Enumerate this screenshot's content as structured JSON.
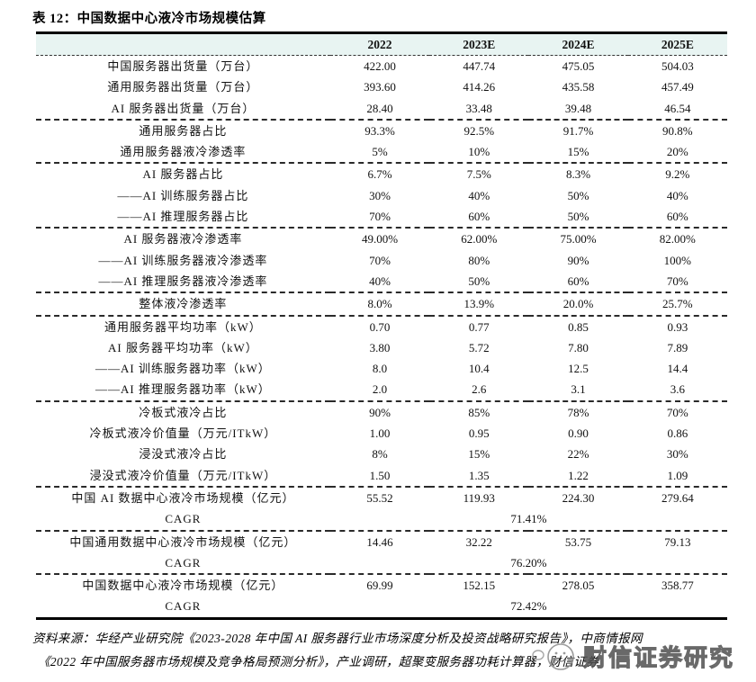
{
  "title": "表 12：中国数据中心液冷市场规模估算",
  "table": {
    "header": [
      "",
      "2022",
      "2023E",
      "2024E",
      "2025E"
    ],
    "rows": [
      {
        "label": "中国服务器出货量（万台）",
        "values": [
          "422.00",
          "447.74",
          "475.05",
          "504.03"
        ]
      },
      {
        "label": "通用服务器出货量（万台）",
        "values": [
          "393.60",
          "414.26",
          "435.58",
          "457.49"
        ]
      },
      {
        "label": "AI 服务器出货量（万台）",
        "values": [
          "28.40",
          "33.48",
          "39.48",
          "46.54"
        ],
        "section_end": true
      },
      {
        "label": "通用服务器占比",
        "values": [
          "93.3%",
          "92.5%",
          "91.7%",
          "90.8%"
        ]
      },
      {
        "label": "通用服务器液冷渗透率",
        "values": [
          "5%",
          "10%",
          "15%",
          "20%"
        ],
        "section_end": true
      },
      {
        "label": "AI 服务器占比",
        "values": [
          "6.7%",
          "7.5%",
          "8.3%",
          "9.2%"
        ]
      },
      {
        "label": "——AI 训练服务器占比",
        "values": [
          "30%",
          "40%",
          "50%",
          "40%"
        ]
      },
      {
        "label": "——AI 推理服务器占比",
        "values": [
          "70%",
          "60%",
          "50%",
          "60%"
        ],
        "section_end": true
      },
      {
        "label": "AI 服务器液冷渗透率",
        "values": [
          "49.00%",
          "62.00%",
          "75.00%",
          "82.00%"
        ]
      },
      {
        "label": "——AI 训练服务器液冷渗透率",
        "values": [
          "70%",
          "80%",
          "90%",
          "100%"
        ]
      },
      {
        "label": "——AI 推理服务器液冷渗透率",
        "values": [
          "40%",
          "50%",
          "60%",
          "70%"
        ],
        "section_end": true
      },
      {
        "label": "整体液冷渗透率",
        "values": [
          "8.0%",
          "13.9%",
          "20.0%",
          "25.7%"
        ],
        "section_end": true
      },
      {
        "label": "通用服务器平均功率（kW）",
        "values": [
          "0.70",
          "0.77",
          "0.85",
          "0.93"
        ]
      },
      {
        "label": "AI 服务器平均功率（kW）",
        "values": [
          "3.80",
          "5.72",
          "7.80",
          "7.89"
        ]
      },
      {
        "label": "——AI 训练服务器功率（kW）",
        "values": [
          "8.0",
          "10.4",
          "12.5",
          "14.4"
        ]
      },
      {
        "label": "——AI 推理服务器功率（kW）",
        "values": [
          "2.0",
          "2.6",
          "3.1",
          "3.6"
        ],
        "section_end": true
      },
      {
        "label": "冷板式液冷占比",
        "values": [
          "90%",
          "85%",
          "78%",
          "70%"
        ]
      },
      {
        "label": "冷板式液冷价值量（万元/ITkW）",
        "values": [
          "1.00",
          "0.95",
          "0.90",
          "0.86"
        ]
      },
      {
        "label": "浸没式液冷占比",
        "values": [
          "8%",
          "15%",
          "22%",
          "30%"
        ]
      },
      {
        "label": "浸没式液冷价值量（万元/ITkW）",
        "values": [
          "1.50",
          "1.35",
          "1.22",
          "1.09"
        ],
        "section_end": true
      },
      {
        "label": "中国 AI 数据中心液冷市场规模（亿元）",
        "values": [
          "55.52",
          "119.93",
          "224.30",
          "279.64"
        ]
      },
      {
        "label": "CAGR",
        "span_value": "71.41%",
        "section_end": true
      },
      {
        "label": "中国通用数据中心液冷市场规模（亿元）",
        "values": [
          "14.46",
          "32.22",
          "53.75",
          "79.13"
        ]
      },
      {
        "label": "CAGR",
        "span_value": "76.20%",
        "section_end": true
      },
      {
        "label": "中国数据中心液冷市场规模（亿元）",
        "values": [
          "69.99",
          "152.15",
          "278.05",
          "358.77"
        ]
      },
      {
        "label": "CAGR",
        "span_value": "72.42%"
      }
    ]
  },
  "footer": {
    "source_line1": "资料来源：华经产业研究院《2023-2028 年中国 AI 服务器行业市场深度分析及投资战略研究报告》，中商情报网",
    "source_line2": "《2022 年中国服务器市场规模及竞争格局预测分析》，产业调研，超聚变服务器功耗计算器，财信证券",
    "watermark": "财信证券研究"
  },
  "colors": {
    "header_bg": "#e8f4f2",
    "rule_color": "#000000",
    "dash_color": "#2a2a2a"
  }
}
